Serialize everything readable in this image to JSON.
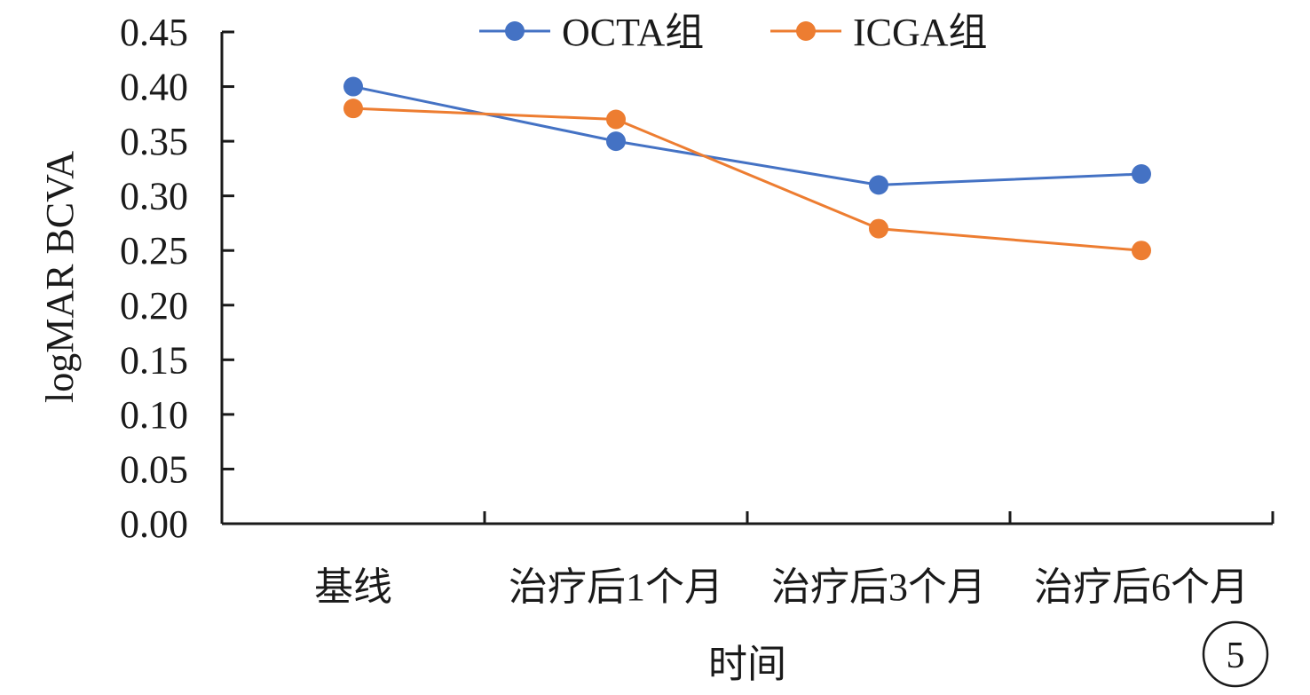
{
  "chart_data": {
    "type": "line",
    "title": "",
    "xlabel": "时间",
    "ylabel": "logMAR BCVA",
    "categories": [
      "基线",
      "治疗后1个月",
      "治疗后3个月",
      "治疗后6个月"
    ],
    "series": [
      {
        "name": "OCTA组",
        "values": [
          0.4,
          0.35,
          0.31,
          0.32
        ],
        "color": "#4472C4"
      },
      {
        "name": "ICGA组",
        "values": [
          0.38,
          0.37,
          0.27,
          0.25
        ],
        "color": "#ED7D31"
      }
    ],
    "ylim": [
      0,
      0.45
    ],
    "yticks": [
      "0.00",
      "0.05",
      "0.10",
      "0.15",
      "0.20",
      "0.25",
      "0.30",
      "0.35",
      "0.40",
      "0.45"
    ],
    "grid": false,
    "legend_position": "top-center"
  },
  "panel_label": "5"
}
